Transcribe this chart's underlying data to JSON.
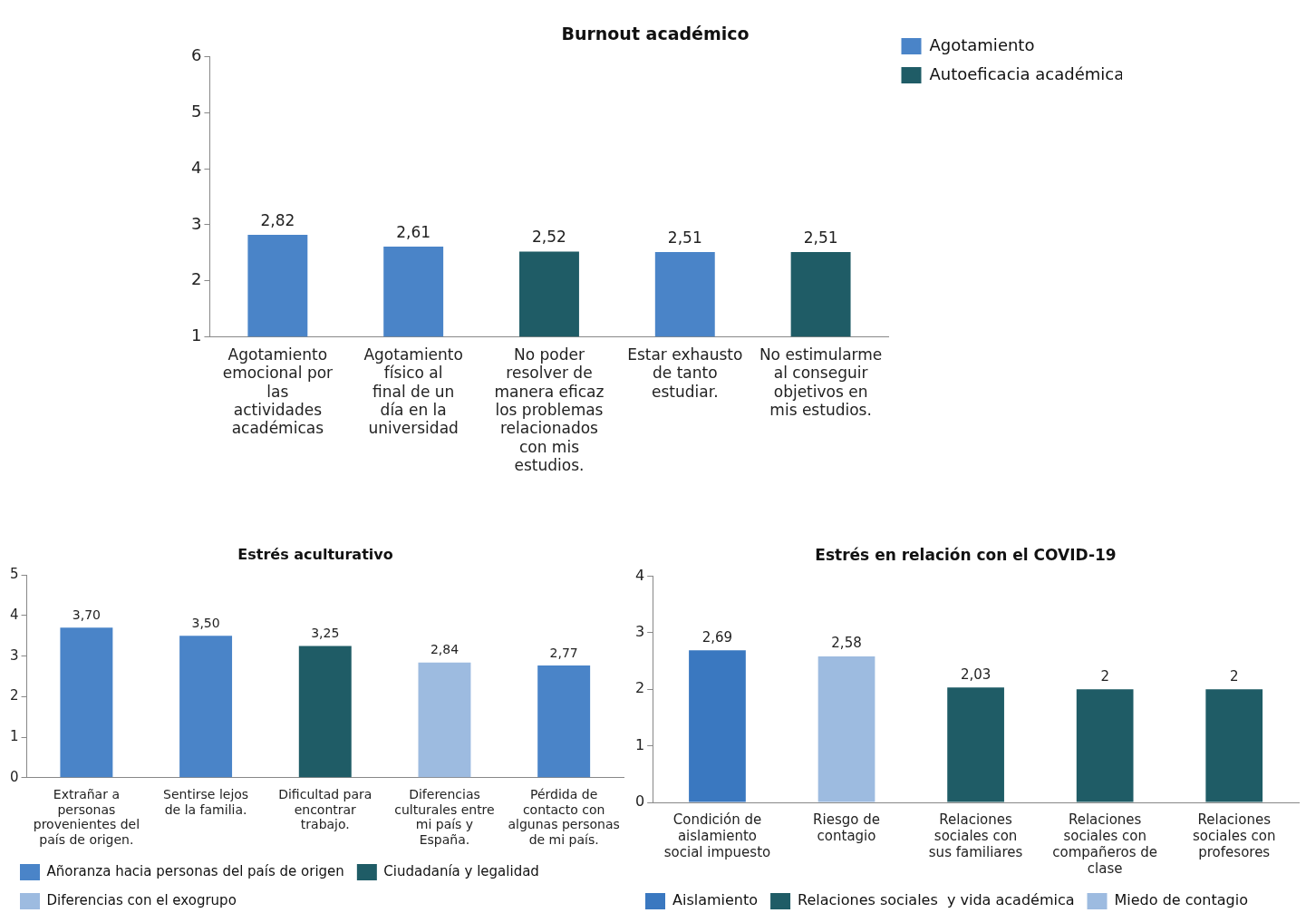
{
  "chart_data": [
    {
      "type": "bar",
      "title": "Burnout académico",
      "categories": [
        "Agotamiento emocional por las actividades académicas",
        "Agotamiento físico al final de un día en la universidad",
        "No poder resolver de manera eficaz los problemas relacionados con mis estudios.",
        "Estar exhausto de tanto estudiar.",
        "No estimularme al conseguir objetivos en mis estudios."
      ],
      "series": [
        {
          "name": "Agotamiento",
          "color": "#4a84c8",
          "values": [
            2.82,
            2.61,
            null,
            2.51,
            null
          ],
          "value_labels": [
            "2,82",
            "2,61",
            null,
            "2,51",
            null
          ]
        },
        {
          "name": "Autoeficacia académica",
          "color": "#1f5c66",
          "values": [
            null,
            null,
            2.52,
            null,
            2.51
          ],
          "value_labels": [
            null,
            null,
            "2,52",
            null,
            "2,51"
          ]
        }
      ],
      "ylim": [
        1,
        6
      ],
      "yticks": [
        1,
        2,
        3,
        4,
        5,
        6
      ],
      "legend": "right"
    },
    {
      "type": "bar",
      "title": "Estrés aculturativo",
      "categories": [
        "Extrañar a personas provenientes del país de origen.",
        "Sentirse lejos de la familia.",
        "Dificultad para encontrar trabajo.",
        "Diferencias culturales entre mi país y España.",
        "Pérdida de contacto con algunas personas de mi país."
      ],
      "series": [
        {
          "name": "Añoranza hacia personas del país de origen",
          "color": "#4a84c8",
          "values": [
            3.7,
            3.5,
            null,
            null,
            2.77
          ],
          "value_labels": [
            "3,70",
            "3,50",
            null,
            null,
            "2,77"
          ]
        },
        {
          "name": "Ciudadanía y legalidad",
          "color": "#1f5c66",
          "values": [
            null,
            null,
            3.25,
            null,
            null
          ],
          "value_labels": [
            null,
            null,
            "3,25",
            null,
            null
          ]
        },
        {
          "name": "Diferencias con el exogrupo",
          "color": "#9dbbe0",
          "values": [
            null,
            null,
            null,
            2.84,
            null
          ],
          "value_labels": [
            null,
            null,
            null,
            "2,84",
            null
          ]
        }
      ],
      "ylim": [
        0,
        5
      ],
      "yticks": [
        0,
        1,
        2,
        3,
        4,
        5
      ],
      "legend": "bottom"
    },
    {
      "type": "bar",
      "title": "Estrés en relación con el COVID-19",
      "categories": [
        "Condición de aislamiento social impuesto",
        "Riesgo de contagio",
        "Relaciones sociales con sus familiares",
        "Relaciones sociales con compañeros de clase",
        "Relaciones sociales con profesores"
      ],
      "series": [
        {
          "name": "Aislamiento",
          "color": "#3a78c0",
          "values": [
            2.69,
            null,
            null,
            null,
            null
          ],
          "value_labels": [
            "2,69",
            null,
            null,
            null,
            null
          ]
        },
        {
          "name": "Relaciones sociales  y vida académica",
          "color": "#1f5c66",
          "values": [
            null,
            null,
            2.03,
            2,
            2
          ],
          "value_labels": [
            null,
            null,
            "2,03",
            "2",
            "2"
          ]
        },
        {
          "name": "Miedo de contagio",
          "color": "#9dbbe0",
          "values": [
            null,
            2.58,
            null,
            null,
            null
          ],
          "value_labels": [
            null,
            "2,58",
            null,
            null,
            null
          ]
        }
      ],
      "ylim": [
        0,
        4
      ],
      "yticks": [
        0,
        1,
        2,
        3,
        4
      ],
      "legend": "bottom"
    }
  ]
}
